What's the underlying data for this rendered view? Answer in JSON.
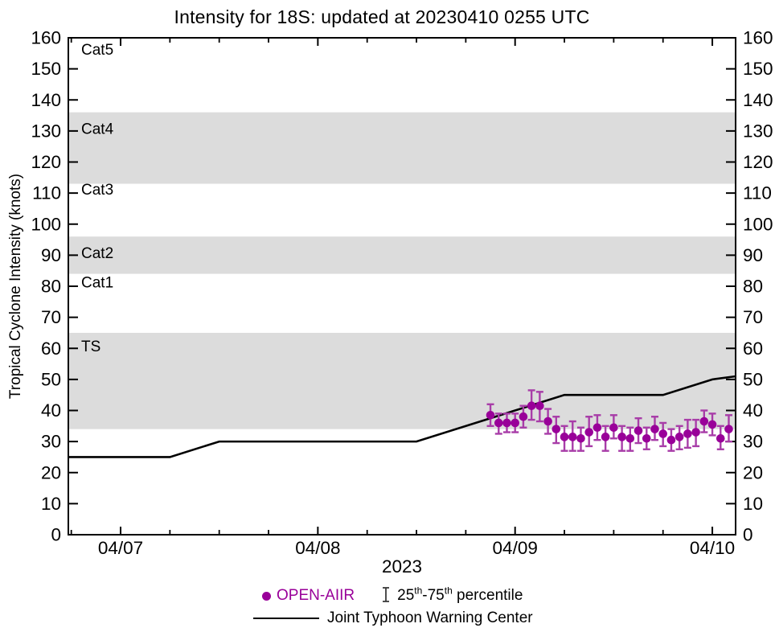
{
  "title": "Intensity for 18S: updated at 20230410 0255 UTC",
  "colors": {
    "open_aiir": "#990099",
    "error_bar": "#a83da8",
    "jtwc_line": "#000000",
    "band_gray": "#dcdcdc",
    "axis": "#000000",
    "legend_glyph": "#3a3a3a"
  },
  "legend": {
    "open_aiir_label": "OPEN-AIIR",
    "percentile": {
      "pre": "25",
      "sup1": "th",
      "mid": "-75",
      "sup2": "th",
      "post": " percentile"
    },
    "jtwc_label": "Joint Typhoon Warning Center"
  },
  "chart_data": {
    "type": "scatter+line",
    "title": "Intensity for 18S: updated at 20230410 0255 UTC",
    "xlabel": "2023",
    "ylabel": "Tropical Cyclone Intensity (knots)",
    "ylim": [
      0,
      160
    ],
    "ytick_step": 10,
    "grid": "off",
    "legend_position": "bottom-center",
    "x_axis": {
      "day_tick_labels": [
        "04/07",
        "04/08",
        "04/09",
        "04/10"
      ],
      "day_tick_t": [
        0,
        1,
        2,
        3
      ],
      "xlim_days_from_0407": [
        -0.265,
        3.118
      ],
      "minor_tick_hours": 6,
      "year_label": "2023"
    },
    "bands_gray": [
      {
        "label": "TS",
        "from": 34,
        "to": 65
      },
      {
        "label": "Cat2",
        "from": 84,
        "to": 96
      },
      {
        "label": "Cat4",
        "from": 113,
        "to": 136
      }
    ],
    "category_labels": [
      {
        "text": "Cat5",
        "at": 156
      },
      {
        "text": "Cat4",
        "at": 130.5
      },
      {
        "text": "Cat3",
        "at": 111
      },
      {
        "text": "Cat2",
        "at": 90.5
      },
      {
        "text": "Cat1",
        "at": 81
      },
      {
        "text": "TS",
        "at": 60.5
      }
    ],
    "series": [
      {
        "name": "Joint Typhoon Warning Center",
        "type": "line",
        "color": "#000000",
        "points_t_v": [
          [
            -0.265,
            25
          ],
          [
            0.25,
            25
          ],
          [
            0.5,
            30
          ],
          [
            1.5,
            30
          ],
          [
            2.25,
            45
          ],
          [
            2.75,
            45
          ],
          [
            3.0,
            50
          ],
          [
            3.118,
            51
          ]
        ]
      },
      {
        "name": "OPEN-AIIR",
        "type": "scatter_with_error_bars",
        "color": "#990099",
        "error_bar_color": "#a83da8",
        "error_bars": "25th-75th percentile",
        "points": [
          {
            "time": "04/08 21:00",
            "t": 1.875,
            "knots": 38.5,
            "p25": 35,
            "p75": 42
          },
          {
            "time": "04/08 22:00",
            "t": 1.9167,
            "knots": 36,
            "p25": 32.5,
            "p75": 39
          },
          {
            "time": "04/08 23:00",
            "t": 1.9583,
            "knots": 36,
            "p25": 33,
            "p75": 39
          },
          {
            "time": "04/09 00:00",
            "t": 2.0,
            "knots": 36,
            "p25": 33,
            "p75": 39
          },
          {
            "time": "04/09 01:00",
            "t": 2.0417,
            "knots": 38,
            "p25": 34.5,
            "p75": 41.5
          },
          {
            "time": "04/09 02:00",
            "t": 2.0833,
            "knots": 41.5,
            "p25": 37,
            "p75": 46.5
          },
          {
            "time": "04/09 03:00",
            "t": 2.125,
            "knots": 41.5,
            "p25": 36.5,
            "p75": 46
          },
          {
            "time": "04/09 04:00",
            "t": 2.1667,
            "knots": 36.5,
            "p25": 32.5,
            "p75": 40.5
          },
          {
            "time": "04/09 05:00",
            "t": 2.2083,
            "knots": 34,
            "p25": 29.5,
            "p75": 38
          },
          {
            "time": "04/09 06:00",
            "t": 2.25,
            "knots": 31.5,
            "p25": 27,
            "p75": 35
          },
          {
            "time": "04/09 07:00",
            "t": 2.2917,
            "knots": 31.5,
            "p25": 27,
            "p75": 36.5
          },
          {
            "time": "04/09 08:00",
            "t": 2.3333,
            "knots": 31,
            "p25": 27,
            "p75": 34.5
          },
          {
            "time": "04/09 09:00",
            "t": 2.375,
            "knots": 33,
            "p25": 28.5,
            "p75": 38
          },
          {
            "time": "04/09 10:00",
            "t": 2.4167,
            "knots": 34.5,
            "p25": 30.5,
            "p75": 38.5
          },
          {
            "time": "04/09 11:00",
            "t": 2.4583,
            "knots": 31.5,
            "p25": 27,
            "p75": 35
          },
          {
            "time": "04/09 12:00",
            "t": 2.5,
            "knots": 34.5,
            "p25": 31,
            "p75": 38.5
          },
          {
            "time": "04/09 13:00",
            "t": 2.5417,
            "knots": 31.5,
            "p25": 27,
            "p75": 35
          },
          {
            "time": "04/09 14:00",
            "t": 2.5833,
            "knots": 31,
            "p25": 27,
            "p75": 34.5
          },
          {
            "time": "04/09 15:00",
            "t": 2.625,
            "knots": 33.5,
            "p25": 29.5,
            "p75": 37.5
          },
          {
            "time": "04/09 16:00",
            "t": 2.6667,
            "knots": 31,
            "p25": 27.5,
            "p75": 34.5
          },
          {
            "time": "04/09 17:00",
            "t": 2.7083,
            "knots": 34,
            "p25": 30.5,
            "p75": 38
          },
          {
            "time": "04/09 18:00",
            "t": 2.75,
            "knots": 32.5,
            "p25": 28.5,
            "p75": 36
          },
          {
            "time": "04/09 19:00",
            "t": 2.7917,
            "knots": 30.5,
            "p25": 27,
            "p75": 34
          },
          {
            "time": "04/09 20:00",
            "t": 2.8333,
            "knots": 31.5,
            "p25": 27.5,
            "p75": 35
          },
          {
            "time": "04/09 21:00",
            "t": 2.875,
            "knots": 32.5,
            "p25": 28,
            "p75": 37
          },
          {
            "time": "04/09 22:00",
            "t": 2.9167,
            "knots": 33,
            "p25": 28.5,
            "p75": 37
          },
          {
            "time": "04/09 23:00",
            "t": 2.9583,
            "knots": 36.5,
            "p25": 33,
            "p75": 40
          },
          {
            "time": "04/10 00:00",
            "t": 3.0,
            "knots": 35.5,
            "p25": 32,
            "p75": 39
          },
          {
            "time": "04/10 01:00",
            "t": 3.0417,
            "knots": 31,
            "p25": 27.5,
            "p75": 35
          },
          {
            "time": "04/10 02:00",
            "t": 3.0833,
            "knots": 34,
            "p25": 30,
            "p75": 38.5
          }
        ]
      }
    ]
  }
}
